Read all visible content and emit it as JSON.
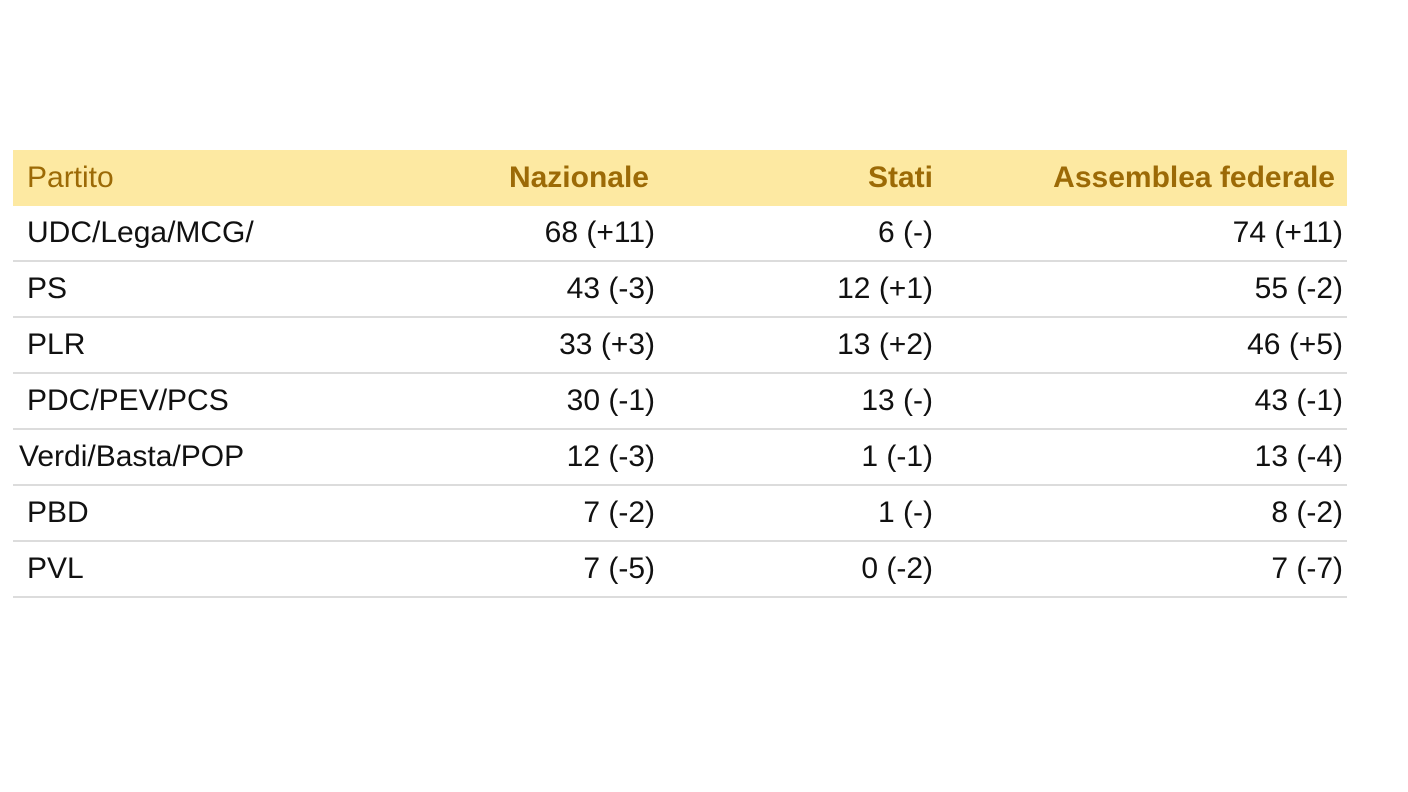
{
  "chart_data": {
    "type": "table",
    "columns": [
      "Partito",
      "Nazionale",
      "Stati",
      "Assemblea federale"
    ],
    "rows": [
      {
        "party": "UDC/Lega/MCG/",
        "nazionale": "68 (+11)",
        "stati": "6 (-)",
        "assemblea": "74 (+11)"
      },
      {
        "party": "PS",
        "nazionale": "43 (-3)",
        "stati": "12 (+1)",
        "assemblea": "55 (-2)"
      },
      {
        "party": "PLR",
        "nazionale": "33 (+3)",
        "stati": "13 (+2)",
        "assemblea": "46 (+5)"
      },
      {
        "party": "PDC/PEV/PCS",
        "nazionale": "30 (-1)",
        "stati": "13 (-)",
        "assemblea": "43 (-1)"
      },
      {
        "party": "Verdi/Basta/POP",
        "nazionale": "12 (-3)",
        "stati": "1 (-1)",
        "assemblea": "13 (-4)"
      },
      {
        "party": "PBD",
        "nazionale": "7 (-2)",
        "stati": "1 (-)",
        "assemblea": "8 (-2)"
      },
      {
        "party": "PVL",
        "nazionale": "7 (-5)",
        "stati": "0 (-2)",
        "assemblea": "7 (-7)"
      }
    ]
  },
  "colors": {
    "header_background": "#fde9a2",
    "header_text": "#9c6a06",
    "body_text": "#111111",
    "row_divider": "#dcdcdc"
  }
}
